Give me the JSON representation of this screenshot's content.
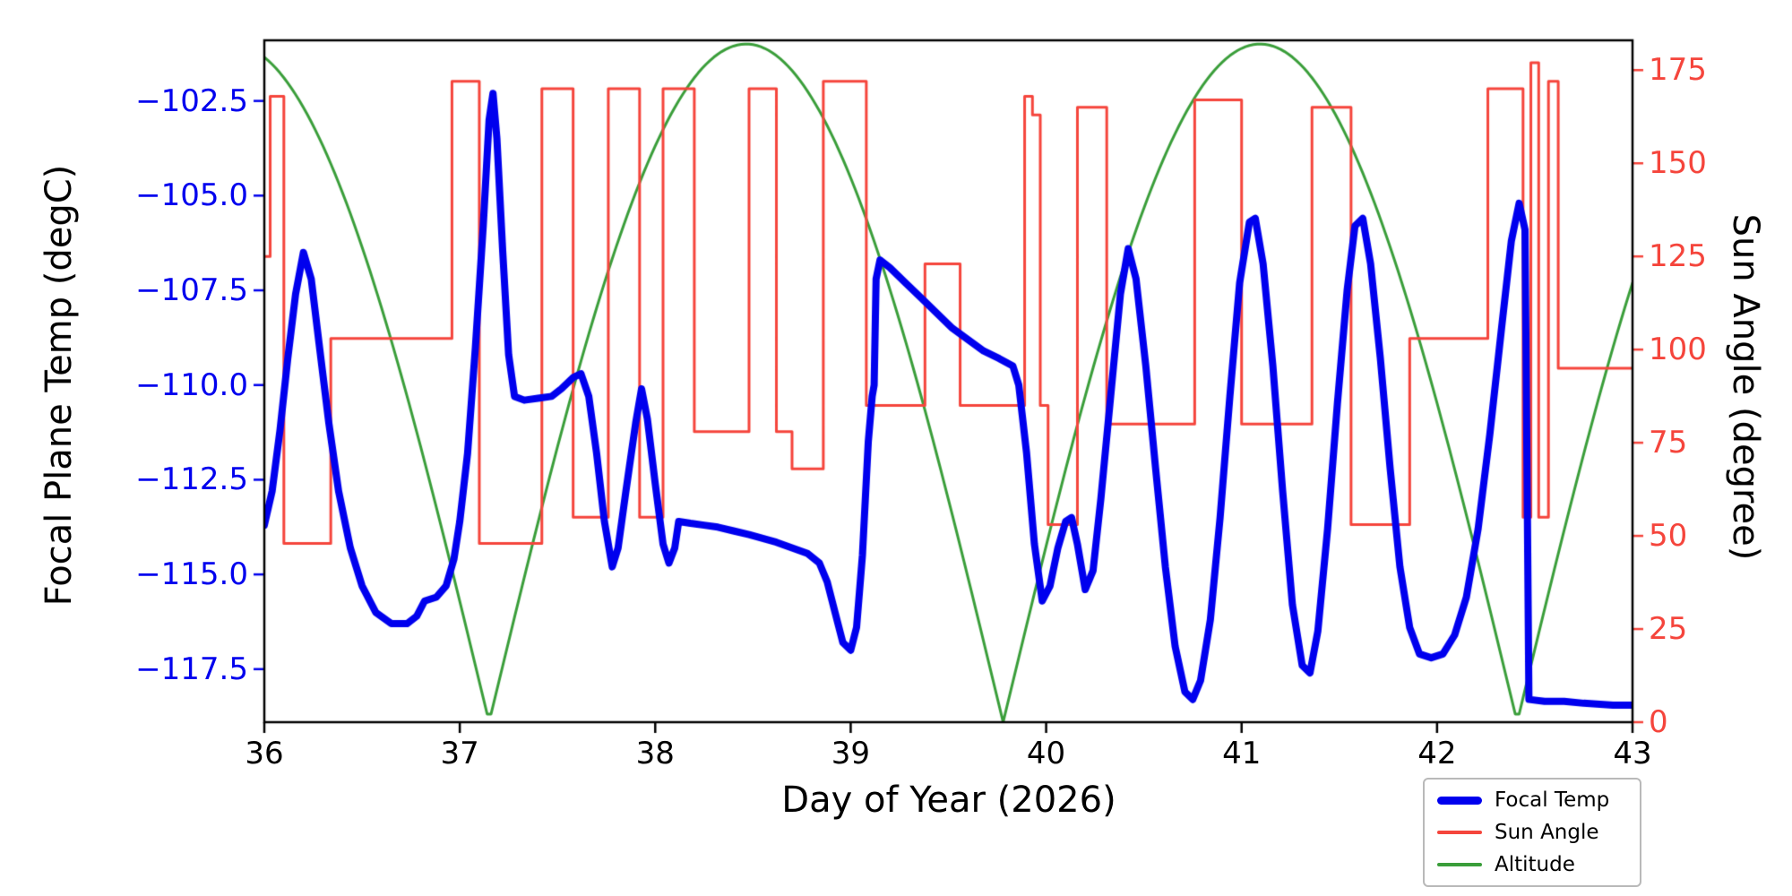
{
  "figure": {
    "background": "#ffffff"
  },
  "chart_data": {
    "type": "line",
    "title": "",
    "xlabel": "Day of Year (2026)",
    "ylabel_left": "Focal Plane Temp (degC)",
    "ylabel_right": "Sun Angle (degree)",
    "x_range": [
      36,
      43
    ],
    "y_left_range": [
      -118.9,
      -100.9
    ],
    "y_right_range": [
      0,
      183
    ],
    "x_ticks": [
      36,
      37,
      38,
      39,
      40,
      41,
      42,
      43
    ],
    "x_tick_labels": [
      "36",
      "37",
      "38",
      "39",
      "40",
      "41",
      "42",
      "43"
    ],
    "y_left_ticks": [
      -102.5,
      -105.0,
      -107.5,
      -110.0,
      -112.5,
      -115.0,
      -117.5
    ],
    "y_left_tick_labels": [
      "−102.5",
      "−105.0",
      "−107.5",
      "−110.0",
      "−112.5",
      "−115.0",
      "−117.5"
    ],
    "y_right_ticks": [
      0,
      25,
      50,
      75,
      100,
      125,
      150,
      175
    ],
    "y_right_tick_labels": [
      "0",
      "25",
      "50",
      "75",
      "100",
      "125",
      "150",
      "175"
    ],
    "axis_colors": {
      "left": "#0000ee",
      "right": "#f5453c",
      "x": "#000000",
      "spine": "#000000"
    },
    "grid": false,
    "series": [
      {
        "name": "Focal Temp",
        "axis": "left",
        "color": "#0000ee",
        "width": 8,
        "mode": "line",
        "points": [
          [
            36.0,
            -113.7
          ],
          [
            36.04,
            -112.8
          ],
          [
            36.08,
            -111.2
          ],
          [
            36.12,
            -109.3
          ],
          [
            36.16,
            -107.6
          ],
          [
            36.2,
            -106.5
          ],
          [
            36.24,
            -107.2
          ],
          [
            36.28,
            -108.9
          ],
          [
            36.33,
            -111.0
          ],
          [
            36.38,
            -112.8
          ],
          [
            36.44,
            -114.3
          ],
          [
            36.5,
            -115.3
          ],
          [
            36.57,
            -116.0
          ],
          [
            36.65,
            -116.3
          ],
          [
            36.73,
            -116.3
          ],
          [
            36.78,
            -116.1
          ],
          [
            36.82,
            -115.7
          ],
          [
            36.88,
            -115.6
          ],
          [
            36.93,
            -115.3
          ],
          [
            36.97,
            -114.6
          ],
          [
            37.0,
            -113.6
          ],
          [
            37.04,
            -111.8
          ],
          [
            37.08,
            -109.0
          ],
          [
            37.12,
            -105.8
          ],
          [
            37.15,
            -103.0
          ],
          [
            37.17,
            -102.3
          ],
          [
            37.19,
            -103.5
          ],
          [
            37.22,
            -106.5
          ],
          [
            37.25,
            -109.2
          ],
          [
            37.28,
            -110.3
          ],
          [
            37.33,
            -110.4
          ],
          [
            37.4,
            -110.35
          ],
          [
            37.47,
            -110.3
          ],
          [
            37.52,
            -110.1
          ],
          [
            37.58,
            -109.8
          ],
          [
            37.62,
            -109.7
          ],
          [
            37.66,
            -110.3
          ],
          [
            37.7,
            -111.8
          ],
          [
            37.74,
            -113.6
          ],
          [
            37.78,
            -114.8
          ],
          [
            37.81,
            -114.3
          ],
          [
            37.85,
            -112.8
          ],
          [
            37.9,
            -111.0
          ],
          [
            37.93,
            -110.1
          ],
          [
            37.96,
            -110.9
          ],
          [
            38.0,
            -112.6
          ],
          [
            38.04,
            -114.2
          ],
          [
            38.07,
            -114.7
          ],
          [
            38.1,
            -114.3
          ],
          [
            38.12,
            -113.6
          ],
          [
            38.18,
            -113.65
          ],
          [
            38.25,
            -113.7
          ],
          [
            38.32,
            -113.75
          ],
          [
            38.4,
            -113.85
          ],
          [
            38.48,
            -113.95
          ],
          [
            38.55,
            -114.05
          ],
          [
            38.62,
            -114.15
          ],
          [
            38.7,
            -114.3
          ],
          [
            38.78,
            -114.45
          ],
          [
            38.84,
            -114.7
          ],
          [
            38.88,
            -115.2
          ],
          [
            38.92,
            -116.0
          ],
          [
            38.96,
            -116.8
          ],
          [
            39.0,
            -117.0
          ],
          [
            39.03,
            -116.4
          ],
          [
            39.06,
            -114.5
          ],
          [
            39.09,
            -111.5
          ],
          [
            39.11,
            -110.3
          ],
          [
            39.12,
            -110.0
          ],
          [
            39.13,
            -107.2
          ],
          [
            39.15,
            -106.7
          ],
          [
            39.2,
            -106.9
          ],
          [
            39.28,
            -107.3
          ],
          [
            39.36,
            -107.7
          ],
          [
            39.44,
            -108.1
          ],
          [
            39.52,
            -108.5
          ],
          [
            39.6,
            -108.8
          ],
          [
            39.68,
            -109.1
          ],
          [
            39.76,
            -109.3
          ],
          [
            39.83,
            -109.5
          ],
          [
            39.86,
            -110.0
          ],
          [
            39.9,
            -111.8
          ],
          [
            39.94,
            -114.2
          ],
          [
            39.98,
            -115.7
          ],
          [
            40.02,
            -115.3
          ],
          [
            40.06,
            -114.3
          ],
          [
            40.1,
            -113.6
          ],
          [
            40.13,
            -113.5
          ],
          [
            40.16,
            -114.2
          ],
          [
            40.2,
            -115.4
          ],
          [
            40.24,
            -114.9
          ],
          [
            40.28,
            -113.0
          ],
          [
            40.33,
            -110.3
          ],
          [
            40.38,
            -107.6
          ],
          [
            40.42,
            -106.4
          ],
          [
            40.46,
            -107.2
          ],
          [
            40.51,
            -109.5
          ],
          [
            40.56,
            -112.2
          ],
          [
            40.61,
            -114.8
          ],
          [
            40.66,
            -116.9
          ],
          [
            40.71,
            -118.1
          ],
          [
            40.75,
            -118.3
          ],
          [
            40.79,
            -117.8
          ],
          [
            40.84,
            -116.2
          ],
          [
            40.89,
            -113.5
          ],
          [
            40.94,
            -110.3
          ],
          [
            40.99,
            -107.3
          ],
          [
            41.04,
            -105.7
          ],
          [
            41.07,
            -105.6
          ],
          [
            41.11,
            -106.8
          ],
          [
            41.16,
            -109.5
          ],
          [
            41.21,
            -112.8
          ],
          [
            41.26,
            -115.8
          ],
          [
            41.31,
            -117.4
          ],
          [
            41.35,
            -117.6
          ],
          [
            41.39,
            -116.5
          ],
          [
            41.44,
            -113.8
          ],
          [
            41.49,
            -110.5
          ],
          [
            41.54,
            -107.5
          ],
          [
            41.58,
            -105.8
          ],
          [
            41.62,
            -105.6
          ],
          [
            41.66,
            -106.8
          ],
          [
            41.71,
            -109.3
          ],
          [
            41.76,
            -112.2
          ],
          [
            41.81,
            -114.8
          ],
          [
            41.86,
            -116.4
          ],
          [
            41.91,
            -117.1
          ],
          [
            41.97,
            -117.2
          ],
          [
            42.03,
            -117.1
          ],
          [
            42.09,
            -116.6
          ],
          [
            42.15,
            -115.6
          ],
          [
            42.21,
            -113.8
          ],
          [
            42.27,
            -111.3
          ],
          [
            42.33,
            -108.5
          ],
          [
            42.38,
            -106.2
          ],
          [
            42.42,
            -105.2
          ],
          [
            42.45,
            -105.9
          ],
          [
            42.46,
            -112.0
          ],
          [
            42.47,
            -118.3
          ],
          [
            42.55,
            -118.35
          ],
          [
            42.65,
            -118.35
          ],
          [
            42.75,
            -118.4
          ],
          [
            42.9,
            -118.45
          ],
          [
            43.0,
            -118.45
          ]
        ]
      },
      {
        "name": "Sun Angle",
        "axis": "right",
        "color": "#f5453c",
        "width": 3,
        "mode": "step",
        "points": [
          [
            36.0,
            125
          ],
          [
            36.03,
            168
          ],
          [
            36.1,
            48
          ],
          [
            36.34,
            103
          ],
          [
            36.96,
            172
          ],
          [
            37.1,
            48
          ],
          [
            37.42,
            170
          ],
          [
            37.58,
            55
          ],
          [
            37.76,
            170
          ],
          [
            37.92,
            55
          ],
          [
            38.04,
            170
          ],
          [
            38.2,
            78
          ],
          [
            38.48,
            170
          ],
          [
            38.62,
            78
          ],
          [
            38.7,
            68
          ],
          [
            38.86,
            172
          ],
          [
            39.08,
            85
          ],
          [
            39.38,
            123
          ],
          [
            39.56,
            85
          ],
          [
            39.89,
            168
          ],
          [
            39.93,
            163
          ],
          [
            39.97,
            85
          ],
          [
            40.01,
            53
          ],
          [
            40.16,
            165
          ],
          [
            40.31,
            80
          ],
          [
            40.76,
            167
          ],
          [
            41.0,
            80
          ],
          [
            41.36,
            165
          ],
          [
            41.56,
            53
          ],
          [
            41.86,
            103
          ],
          [
            42.26,
            170
          ],
          [
            42.44,
            55
          ],
          [
            42.48,
            177
          ],
          [
            42.52,
            55
          ],
          [
            42.57,
            172
          ],
          [
            42.62,
            95
          ],
          [
            43.0,
            95
          ]
        ]
      },
      {
        "name": "Altitude",
        "axis": "right",
        "color": "#3a9e3a",
        "width": 3,
        "mode": "abs_sine",
        "params": {
          "amplitude": 182,
          "period": 2.63,
          "zero_reference": 34.52,
          "sample_step": 0.02
        }
      }
    ],
    "legend": {
      "position": "lower right",
      "items": [
        {
          "label": "Focal Temp",
          "color": "#0000ee",
          "thickness": 9
        },
        {
          "label": "Sun Angle",
          "color": "#f5453c",
          "thickness": 4
        },
        {
          "label": "Altitude",
          "color": "#3a9e3a",
          "thickness": 4
        }
      ]
    }
  }
}
